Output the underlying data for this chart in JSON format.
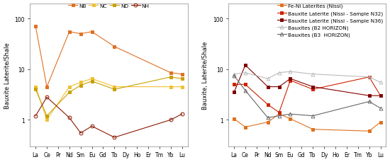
{
  "elements": [
    "La",
    "Ce",
    "Pr",
    "Nd",
    "Sm",
    "Eu",
    "Gd",
    "Tb",
    "Dy",
    "Ho",
    "Er",
    "Tm",
    "Yb",
    "Lu"
  ],
  "left_series": {
    "NB": {
      "color": "#E07020",
      "marker": "s",
      "values": [
        70,
        4.5,
        null,
        55,
        50,
        55,
        null,
        28,
        null,
        null,
        null,
        null,
        8.5,
        8.0
      ]
    },
    "NC": {
      "color": "#F0C030",
      "marker": "s",
      "values": [
        4.5,
        1.0,
        null,
        4.5,
        5.5,
        6.5,
        null,
        4.5,
        null,
        null,
        null,
        null,
        4.5,
        4.5
      ]
    },
    "ND": {
      "color": "#C8A000",
      "marker": "s",
      "values": [
        4.0,
        1.2,
        null,
        3.5,
        4.8,
        5.8,
        null,
        4.0,
        null,
        null,
        null,
        null,
        7.0,
        6.5
      ]
    },
    "NH": {
      "color": "#8B1800",
      "marker": "o",
      "values": [
        1.2,
        2.8,
        null,
        1.1,
        0.55,
        0.75,
        null,
        0.45,
        null,
        null,
        null,
        null,
        1.0,
        1.3
      ]
    }
  },
  "right_series": {
    "Fe-Ni Laterites (Nissi)": {
      "color": "#E07020",
      "marker": "s",
      "values": [
        1.05,
        0.72,
        null,
        0.9,
        1.3,
        1.05,
        null,
        0.65,
        null,
        null,
        null,
        null,
        0.6,
        0.9
      ]
    },
    "Bauxite Laterite (Nissi - Sample N32)": {
      "color": "#CC2200",
      "marker": "s",
      "values": [
        5.0,
        5.0,
        null,
        2.0,
        1.4,
        6.0,
        null,
        4.0,
        null,
        null,
        null,
        null,
        7.0,
        3.0
      ]
    },
    "Bauxite Laterite (Nissi - Sample N36)": {
      "color": "#800000",
      "marker": "s",
      "values": [
        3.5,
        12.0,
        null,
        4.5,
        4.5,
        6.5,
        null,
        4.5,
        null,
        null,
        null,
        null,
        3.0,
        3.0
      ]
    },
    "Bauxites (B2 HORIZON)": {
      "color": "#BBBBBB",
      "marker": "^",
      "values": [
        8.0,
        8.5,
        null,
        6.5,
        8.5,
        9.0,
        null,
        8.0,
        null,
        null,
        null,
        null,
        7.0,
        5.5
      ]
    },
    "Bauxites (B3  HORIZON)": {
      "color": "#666666",
      "marker": "^",
      "values": [
        7.5,
        3.8,
        null,
        1.1,
        1.2,
        1.3,
        null,
        1.2,
        null,
        null,
        null,
        null,
        2.3,
        1.7
      ]
    }
  },
  "ylabel_left": "Bauxite Laterite/Shale",
  "ylabel_right": "Bauxite, Laterite/Shale",
  "ylim_log": [
    0.3,
    200
  ],
  "yticks": [
    1,
    10,
    100
  ],
  "yticklabels": [
    "1",
    "10",
    "100"
  ],
  "background_color": "#ffffff",
  "legend_fontsize": 5.2,
  "tick_fontsize": 5.5,
  "label_fontsize": 6.0
}
